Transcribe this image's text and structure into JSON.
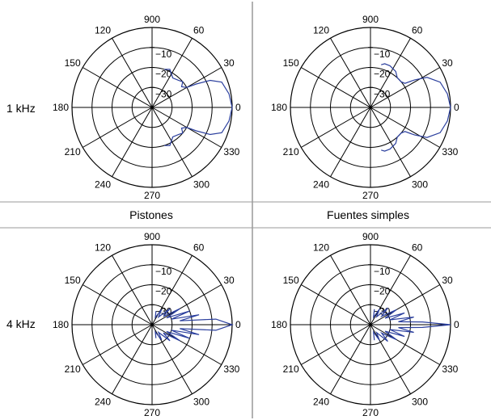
{
  "row_labels": [
    "1 kHz",
    "4 kHz"
  ],
  "column_labels": [
    "Pistones",
    "Fuentes simples"
  ],
  "colors": {
    "grid": "#000000",
    "pattern": "#2b3f9e",
    "divider": "#666666"
  },
  "chart_data": [
    {
      "type": "polar",
      "row": "1 kHz",
      "column": "Pistones",
      "angle_labels": [
        "900",
        "60",
        "30",
        "0",
        "330",
        "300",
        "270",
        "240",
        "210",
        "180",
        "150",
        "120"
      ],
      "radial_labels": [
        "-10",
        "-20",
        "-30"
      ],
      "radial_range_db": [
        -40,
        0
      ],
      "series": [
        {
          "values": [
            [
              0,
              0
            ],
            [
              10,
              -1
            ],
            [
              20,
              -3
            ],
            [
              25,
              -8
            ],
            [
              28,
              -15
            ],
            [
              30,
              -20
            ],
            [
              35,
              -22
            ],
            [
              40,
              -20
            ],
            [
              45,
              -21
            ],
            [
              55,
              -22
            ],
            [
              65,
              -19
            ],
            [
              72,
              -20
            ],
            [
              -10,
              -1
            ],
            [
              -20,
              -3
            ],
            [
              -25,
              -8
            ],
            [
              -28,
              -15
            ],
            [
              -30,
              -20
            ],
            [
              -35,
              -22
            ],
            [
              -40,
              -20
            ],
            [
              -45,
              -21
            ],
            [
              -55,
              -22
            ],
            [
              -65,
              -19
            ],
            [
              -72,
              -20
            ]
          ]
        }
      ]
    },
    {
      "type": "polar",
      "row": "1 kHz",
      "column": "Fuentes simples",
      "angle_labels": [
        "900",
        "60",
        "30",
        "0",
        "330",
        "300",
        "270",
        "240",
        "210",
        "180",
        "150",
        "120"
      ],
      "radial_labels": [
        "-10",
        "-20",
        "-30"
      ],
      "radial_range_db": [
        -40,
        0
      ],
      "series": [
        {
          "values": [
            [
              0,
              0
            ],
            [
              10,
              -1
            ],
            [
              20,
              -3
            ],
            [
              28,
              -8
            ],
            [
              32,
              -14
            ],
            [
              35,
              -19
            ],
            [
              40,
              -20
            ],
            [
              48,
              -20
            ],
            [
              55,
              -18
            ],
            [
              65,
              -17
            ],
            [
              72,
              -17
            ],
            [
              76,
              -18
            ],
            [
              -10,
              -1
            ],
            [
              -20,
              -3
            ],
            [
              -28,
              -8
            ],
            [
              -32,
              -14
            ],
            [
              -35,
              -19
            ],
            [
              -40,
              -20
            ],
            [
              -48,
              -20
            ],
            [
              -55,
              -18
            ],
            [
              -65,
              -17
            ],
            [
              -72,
              -17
            ],
            [
              -76,
              -18
            ]
          ]
        }
      ]
    },
    {
      "type": "polar",
      "row": "4 kHz",
      "column": "Pistones",
      "angle_labels": [
        "900",
        "60",
        "30",
        "0",
        "330",
        "300",
        "270",
        "240",
        "210",
        "180",
        "150",
        "120"
      ],
      "radial_labels": [
        "-10",
        "-20",
        "-30"
      ],
      "radial_range_db": [
        -40,
        0
      ],
      "series": [
        {
          "values": [
            [
              0,
              0
            ],
            [
              5,
              -8
            ],
            [
              8,
              -26
            ],
            [
              12,
              -16
            ],
            [
              16,
              -30
            ],
            [
              20,
              -20
            ],
            [
              25,
              -32
            ],
            [
              30,
              -24
            ],
            [
              36,
              -33
            ],
            [
              42,
              -28
            ],
            [
              50,
              -35
            ],
            [
              58,
              -31
            ],
            [
              66,
              -36
            ],
            [
              74,
              -33
            ],
            [
              -5,
              -8
            ],
            [
              -8,
              -26
            ],
            [
              -12,
              -16
            ],
            [
              -16,
              -30
            ],
            [
              -20,
              -20
            ],
            [
              -25,
              -32
            ],
            [
              -30,
              -24
            ],
            [
              -36,
              -33
            ],
            [
              -42,
              -28
            ],
            [
              -50,
              -35
            ],
            [
              -58,
              -31
            ],
            [
              -66,
              -36
            ],
            [
              -74,
              -33
            ]
          ]
        }
      ]
    },
    {
      "type": "polar",
      "row": "4 kHz",
      "column": "Fuentes simples",
      "angle_labels": [
        "900",
        "60",
        "30",
        "0",
        "330",
        "300",
        "270",
        "240",
        "210",
        "180",
        "150",
        "120"
      ],
      "radial_labels": [
        "-10",
        "-20",
        "-30"
      ],
      "radial_range_db": [
        -40,
        0
      ],
      "series": [
        {
          "values": [
            [
              0,
              0
            ],
            [
              3,
              -14
            ],
            [
              6,
              -26
            ],
            [
              10,
              -18
            ],
            [
              14,
              -30
            ],
            [
              19,
              -22
            ],
            [
              24,
              -32
            ],
            [
              30,
              -25
            ],
            [
              37,
              -33
            ],
            [
              44,
              -28
            ],
            [
              52,
              -35
            ],
            [
              60,
              -31
            ],
            [
              68,
              -36
            ],
            [
              76,
              -32
            ],
            [
              -3,
              -14
            ],
            [
              -6,
              -26
            ],
            [
              -10,
              -18
            ],
            [
              -14,
              -30
            ],
            [
              -19,
              -22
            ],
            [
              -24,
              -32
            ],
            [
              -30,
              -25
            ],
            [
              -37,
              -33
            ],
            [
              -44,
              -28
            ],
            [
              -52,
              -35
            ],
            [
              -60,
              -31
            ],
            [
              -68,
              -36
            ],
            [
              -76,
              -32
            ]
          ]
        }
      ]
    }
  ]
}
